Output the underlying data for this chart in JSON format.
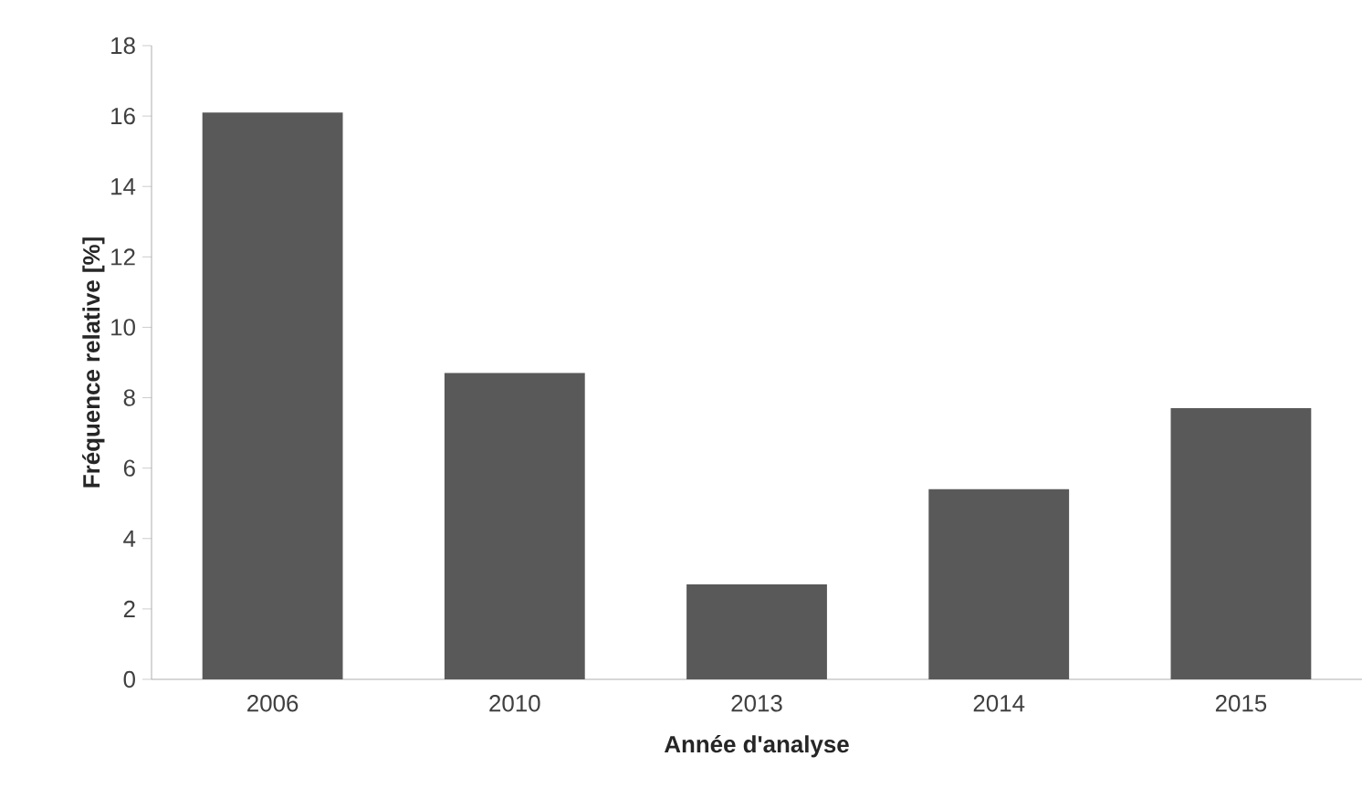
{
  "chart_data": {
    "type": "bar",
    "xlabel": "Année d'analyse",
    "ylabel": "Fréquence relative [%]",
    "categories": [
      "2006",
      "2010",
      "2013",
      "2014",
      "2015"
    ],
    "values": [
      16.1,
      8.7,
      2.7,
      5.4,
      7.7
    ],
    "color": "#595959",
    "ylim": [
      0,
      18
    ],
    "yticks": [
      0,
      2,
      4,
      6,
      8,
      10,
      12,
      14,
      16,
      18
    ],
    "grid": false
  }
}
